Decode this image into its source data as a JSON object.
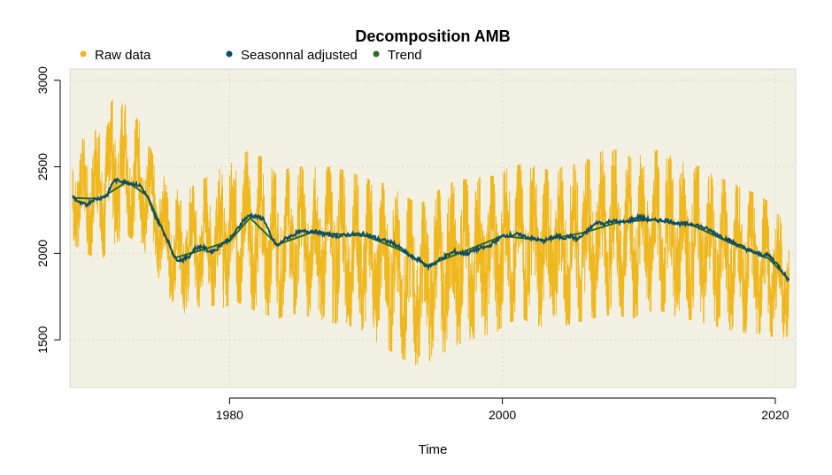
{
  "chart_data": {
    "type": "line",
    "title": "Decomposition AMB",
    "xlabel": "Time",
    "ylabel": "",
    "xlim": [
      1968.3,
      2021.5
    ],
    "ylim": [
      1225,
      3065
    ],
    "x_ticks": [
      1980,
      2000,
      2020
    ],
    "y_ticks": [
      1500,
      2000,
      2500,
      3000
    ],
    "grid": true,
    "legend_position": "top-left, horizontal",
    "colors": {
      "background": "#F3F1E4",
      "grid": "#D8D8D0",
      "raw": "#F0B81F",
      "seasonal_adjusted": "#0E4D64",
      "trend": "#2E6B1F"
    },
    "series": [
      {
        "name": "Raw data",
        "band": true,
        "x": [
          1968.5,
          1969.5,
          1970.5,
          1971.5,
          1972.5,
          1973.5,
          1974.5,
          1975.5,
          1976.5,
          1977.5,
          1978.5,
          1979.5,
          1980.5,
          1981.5,
          1982.5,
          1983.5,
          1984.5,
          1985.5,
          1986.5,
          1987.5,
          1988.5,
          1989.5,
          1990.5,
          1991.5,
          1992.5,
          1993.5,
          1994.5,
          1995.5,
          1996.5,
          1997.5,
          1998.5,
          1999.5,
          2000.5,
          2001.5,
          2002.5,
          2003.5,
          2004.5,
          2005.5,
          2006.5,
          2007.5,
          2008.5,
          2009.5,
          2010.5,
          2011.5,
          2012.5,
          2013.5,
          2014.5,
          2015.5,
          2016.5,
          2017.5,
          2018.5,
          2019.5,
          2020.5,
          2021.0
        ],
        "upper": [
          2700,
          2650,
          2750,
          2900,
          2850,
          2750,
          2550,
          2400,
          2350,
          2400,
          2450,
          2500,
          2550,
          2600,
          2550,
          2450,
          2500,
          2500,
          2500,
          2500,
          2480,
          2450,
          2420,
          2400,
          2350,
          2300,
          2300,
          2380,
          2420,
          2430,
          2440,
          2450,
          2500,
          2520,
          2500,
          2480,
          2500,
          2520,
          2550,
          2600,
          2600,
          2550,
          2580,
          2600,
          2560,
          2520,
          2500,
          2450,
          2420,
          2380,
          2350,
          2300,
          2200,
          2150
        ],
        "lower": [
          2050,
          2000,
          1950,
          2050,
          2100,
          2050,
          1900,
          1750,
          1650,
          1680,
          1700,
          1680,
          1720,
          1680,
          1650,
          1620,
          1650,
          1640,
          1620,
          1600,
          1580,
          1570,
          1500,
          1450,
          1400,
          1350,
          1370,
          1420,
          1460,
          1500,
          1520,
          1540,
          1600,
          1620,
          1580,
          1560,
          1580,
          1600,
          1620,
          1640,
          1640,
          1620,
          1660,
          1670,
          1640,
          1620,
          1600,
          1580,
          1560,
          1540,
          1540,
          1520,
          1510,
          1520
        ]
      },
      {
        "name": "Seasonnal adjusted",
        "x": [
          1968.5,
          1969.0,
          1969.5,
          1970.0,
          1970.5,
          1971.0,
          1971.5,
          1972.0,
          1972.5,
          1973.0,
          1973.5,
          1974.0,
          1974.5,
          1975.0,
          1975.5,
          1976.0,
          1976.5,
          1977.0,
          1977.5,
          1978.0,
          1978.5,
          1979.0,
          1979.5,
          1980.0,
          1980.5,
          1981.0,
          1981.5,
          1982.0,
          1982.5,
          1983.0,
          1983.5,
          1984.0,
          1984.5,
          1985.0,
          1986.0,
          1987.0,
          1988.0,
          1989.0,
          1990.0,
          1991.0,
          1992.0,
          1993.0,
          1993.5,
          1994.0,
          1994.5,
          1995.0,
          1995.5,
          1996.0,
          1996.5,
          1997.0,
          1997.5,
          1998.0,
          1999.0,
          2000.0,
          2001.0,
          2002.0,
          2003.0,
          2004.0,
          2004.5,
          2005.0,
          2005.5,
          2006.0,
          2006.5,
          2007.0,
          2007.5,
          2008.0,
          2008.5,
          2009.0,
          2010.0,
          2011.0,
          2012.0,
          2013.0,
          2014.0,
          2015.0,
          2016.0,
          2017.0,
          2018.0,
          2019.0,
          2019.5,
          2020.0,
          2020.5,
          2021.0
        ],
        "y": [
          2330,
          2290,
          2280,
          2310,
          2320,
          2330,
          2420,
          2420,
          2410,
          2400,
          2390,
          2320,
          2220,
          2150,
          2070,
          1970,
          1960,
          1980,
          2030,
          2040,
          2010,
          2020,
          2060,
          2080,
          2130,
          2190,
          2220,
          2210,
          2200,
          2100,
          2040,
          2080,
          2100,
          2120,
          2130,
          2110,
          2100,
          2110,
          2110,
          2080,
          2060,
          2000,
          1970,
          1960,
          1920,
          1940,
          1970,
          1990,
          2010,
          2000,
          2000,
          2020,
          2040,
          2100,
          2110,
          2090,
          2070,
          2100,
          2090,
          2100,
          2080,
          2110,
          2150,
          2180,
          2170,
          2190,
          2180,
          2180,
          2210,
          2190,
          2190,
          2170,
          2170,
          2140,
          2100,
          2060,
          2020,
          1990,
          1990,
          1950,
          1900,
          1840
        ]
      },
      {
        "name": "Trend",
        "x": [
          1968.5,
          1970.5,
          1972.5,
          1974.0,
          1976.0,
          1978.0,
          1980.0,
          1981.5,
          1983.5,
          1986.0,
          1990.0,
          1992.5,
          1994.5,
          1997.0,
          2000.0,
          2003.0,
          2006.0,
          2008.5,
          2011.0,
          2014.0,
          2017.0,
          2019.5,
          2021.0
        ],
        "y": [
          2320,
          2315,
          2415,
          2330,
          1975,
          2020,
          2070,
          2205,
          2050,
          2120,
          2100,
          2020,
          1930,
          2005,
          2100,
          2075,
          2120,
          2180,
          2195,
          2160,
          2050,
          1970,
          1850
        ]
      }
    ]
  }
}
